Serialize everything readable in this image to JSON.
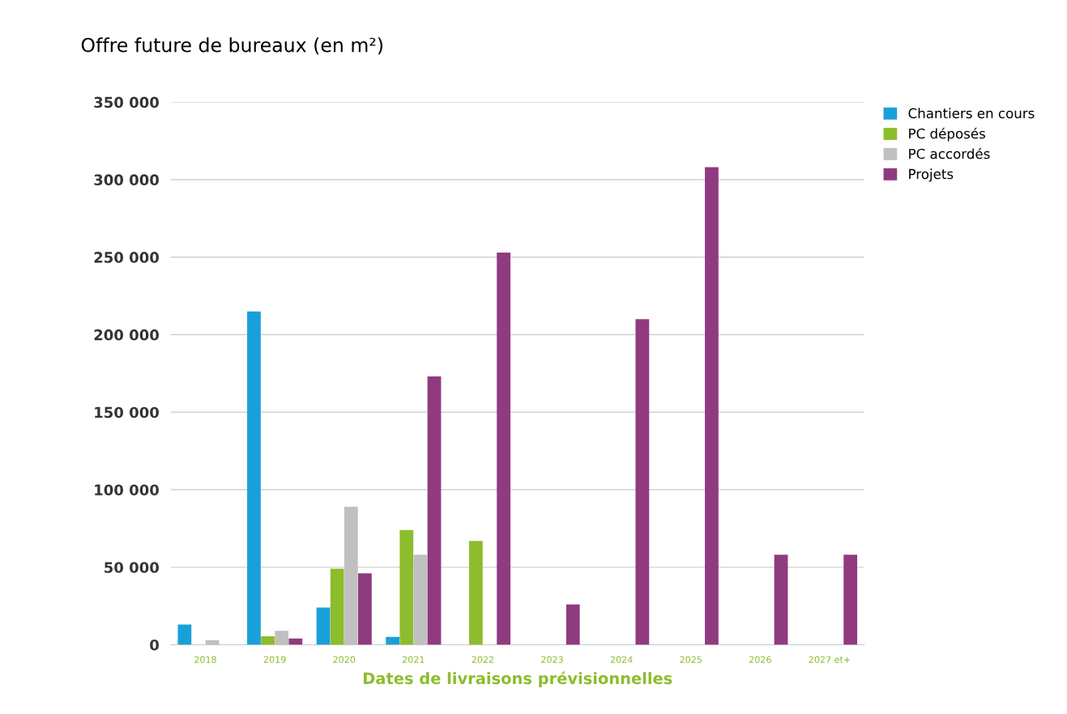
{
  "chart_data": {
    "type": "bar",
    "title": "Offre future de bureaux (en m²)",
    "xlabel": "Dates de livraisons prévisionnelles",
    "categories": [
      "2018",
      "2019",
      "2020",
      "2021",
      "2022",
      "2023",
      "2024",
      "2025",
      "2026",
      "2027 et+"
    ],
    "series": [
      {
        "name": "Chantiers en cours",
        "color": "#1aa0d8",
        "values": [
          13000,
          215000,
          24000,
          5000,
          0,
          0,
          0,
          0,
          0,
          0
        ]
      },
      {
        "name": "PC déposés",
        "color": "#8cbd2c",
        "values": [
          0,
          5500,
          49000,
          74000,
          67000,
          0,
          0,
          0,
          0,
          0
        ]
      },
      {
        "name": "PC accordés",
        "color": "#c0c0c0",
        "values": [
          3000,
          9000,
          89000,
          58000,
          0,
          0,
          0,
          0,
          0,
          0
        ]
      },
      {
        "name": "Projets",
        "color": "#903a80",
        "values": [
          0,
          4000,
          46000,
          173000,
          253000,
          26000,
          210000,
          308000,
          58000,
          58000
        ]
      }
    ],
    "ylim": [
      0,
      350000
    ],
    "yticks": [
      {
        "value": 0,
        "label": "0"
      },
      {
        "value": 50000,
        "label": "50 000"
      },
      {
        "value": 100000,
        "label": "100 000"
      },
      {
        "value": 150000,
        "label": "150 000"
      },
      {
        "value": 200000,
        "label": "200 000"
      },
      {
        "value": 250000,
        "label": "250 000"
      },
      {
        "value": 300000,
        "label": "300 000"
      },
      {
        "value": 350000,
        "label": "350 000"
      }
    ],
    "grid": "y",
    "legend": "top right"
  }
}
